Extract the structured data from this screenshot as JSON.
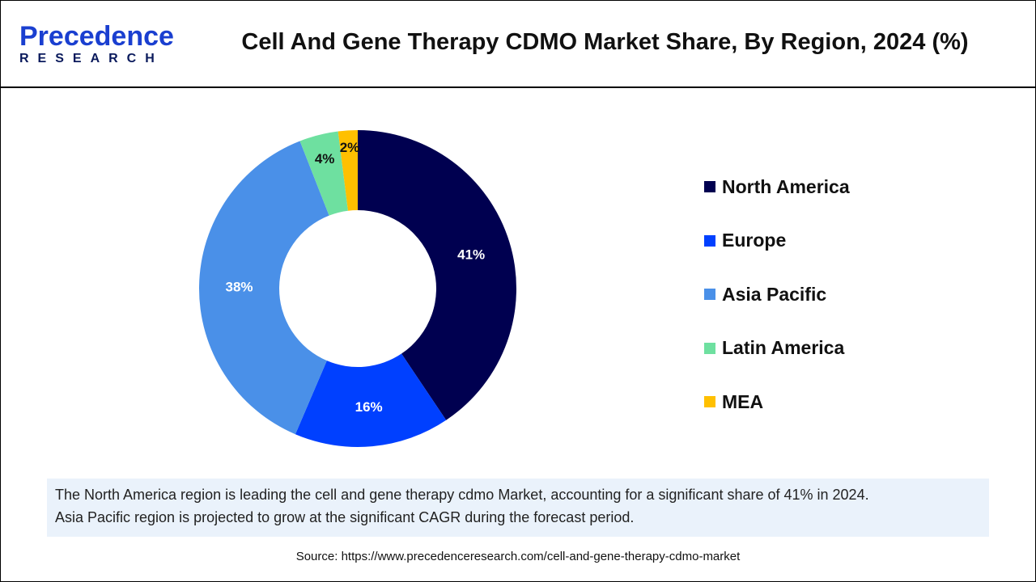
{
  "header": {
    "logo_text": "Precedence",
    "logo_sub": "RESEARCH",
    "title": "Cell And Gene Therapy CDMO Market Share, By Region, 2024 (%)"
  },
  "chart_data": {
    "type": "pie",
    "donut": true,
    "title": "Cell And Gene Therapy CDMO Market Share, By Region, 2024 (%)",
    "legend_position": "right",
    "categories": [
      "North America",
      "Europe",
      "Asia Pacific",
      "Latin America",
      "MEA"
    ],
    "values": [
      41,
      16,
      38,
      4,
      2
    ],
    "labels": [
      "41%",
      "16%",
      "38%",
      "4%",
      "2%"
    ],
    "colors": [
      "#000050",
      "#0040ff",
      "#4a90e8",
      "#6ee0a0",
      "#ffc000"
    ],
    "label_colors": [
      "#ffffff",
      "#ffffff",
      "#ffffff",
      "#111111",
      "#111111"
    ]
  },
  "note": {
    "line1": "The North America region is leading the cell and gene therapy cdmo Market, accounting for a significant share of 41% in 2024.",
    "line2": "Asia Pacific region is projected to grow at the significant CAGR during the forecast period."
  },
  "source": "Source: https://www.precedenceresearch.com/cell-and-gene-therapy-cdmo-market"
}
